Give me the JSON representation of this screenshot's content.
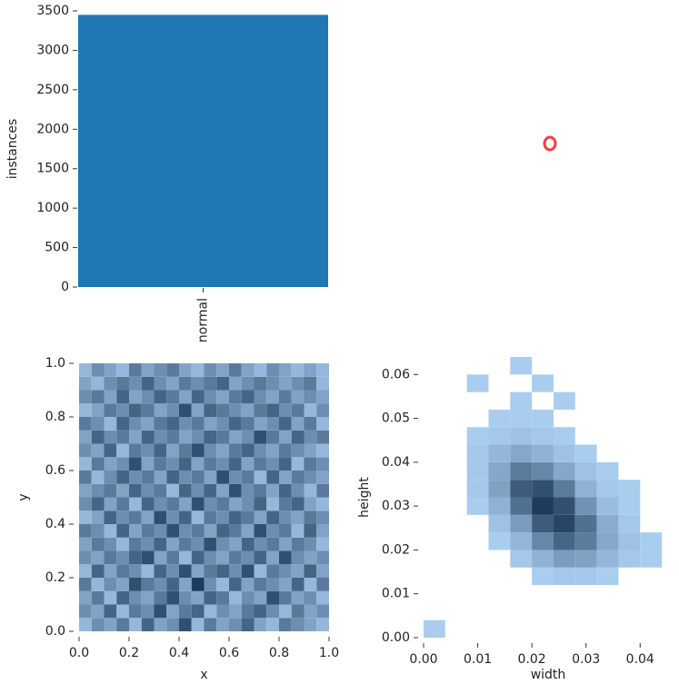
{
  "chart_data": [
    {
      "type": "bar",
      "ylabel": "instances",
      "categories": [
        "normal"
      ],
      "values": [
        3450
      ],
      "color": "#1f77b4",
      "ylim": [
        0,
        3500
      ],
      "yticks": [
        0,
        500,
        1000,
        1500,
        2000,
        2500,
        3000,
        3500
      ]
    },
    {
      "type": "hist2d",
      "xlabel": "x",
      "ylabel": "y",
      "cmap": [
        "#a9cdef",
        "#1d3b5c"
      ],
      "xlim": [
        0,
        1
      ],
      "ylim": [
        0,
        1
      ],
      "xticks": [
        {
          "value": 0,
          "label": "0.0"
        },
        0.2,
        0.4,
        0.6,
        0.8,
        {
          "value": 1,
          "label": "1.0"
        }
      ],
      "yticks": [
        {
          "value": 0,
          "label": "0.0"
        },
        0.2,
        0.4,
        0.6,
        0.8,
        {
          "value": 1,
          "label": "1.0"
        }
      ],
      "x_bins": [
        0,
        0.05,
        0.1,
        0.15,
        0.2,
        0.25,
        0.3,
        0.35,
        0.4,
        0.45,
        0.5,
        0.55,
        0.6,
        0.65,
        0.7,
        0.75,
        0.8,
        0.85,
        0.9,
        0.95,
        1
      ],
      "y_bins": [
        0,
        0.05,
        0.1,
        0.15,
        0.2,
        0.25,
        0.3,
        0.35,
        0.4,
        0.45,
        0.5,
        0.55,
        0.6,
        0.65,
        0.7,
        0.75,
        0.8,
        0.85,
        0.9,
        0.95,
        1
      ],
      "counts": [
        [
          2,
          4,
          3,
          5,
          2,
          6,
          3,
          4,
          7,
          2,
          5,
          3,
          4,
          6,
          3,
          2,
          5,
          4,
          3,
          2
        ],
        [
          4,
          3,
          6,
          2,
          5,
          4,
          7,
          3,
          5,
          6,
          2,
          4,
          3,
          5,
          6,
          4,
          2,
          5,
          3,
          4
        ],
        [
          3,
          5,
          2,
          6,
          4,
          3,
          5,
          7,
          4,
          3,
          6,
          5,
          2,
          4,
          3,
          7,
          5,
          3,
          4,
          2
        ],
        [
          5,
          2,
          4,
          3,
          7,
          5,
          4,
          6,
          3,
          8,
          4,
          2,
          6,
          3,
          5,
          4,
          3,
          6,
          2,
          5
        ],
        [
          2,
          6,
          3,
          5,
          4,
          2,
          6,
          4,
          7,
          3,
          5,
          6,
          4,
          7,
          2,
          5,
          4,
          3,
          6,
          3
        ],
        [
          4,
          3,
          5,
          4,
          6,
          7,
          3,
          5,
          2,
          6,
          4,
          3,
          5,
          4,
          6,
          3,
          7,
          4,
          3,
          4
        ],
        [
          3,
          5,
          4,
          2,
          5,
          4,
          6,
          3,
          5,
          4,
          7,
          4,
          3,
          6,
          4,
          5,
          3,
          5,
          4,
          2
        ],
        [
          5,
          4,
          2,
          6,
          3,
          5,
          4,
          7,
          4,
          5,
          3,
          6,
          5,
          3,
          7,
          4,
          5,
          2,
          6,
          3
        ],
        [
          2,
          3,
          6,
          4,
          5,
          3,
          7,
          4,
          6,
          2,
          5,
          4,
          6,
          5,
          3,
          6,
          4,
          3,
          5,
          4
        ],
        [
          4,
          6,
          3,
          5,
          2,
          6,
          4,
          5,
          3,
          7,
          4,
          5,
          3,
          4,
          6,
          2,
          5,
          6,
          3,
          2
        ],
        [
          3,
          4,
          5,
          3,
          6,
          4,
          5,
          2,
          6,
          4,
          6,
          3,
          7,
          4,
          5,
          3,
          6,
          4,
          2,
          5
        ],
        [
          5,
          2,
          4,
          6,
          4,
          5,
          3,
          6,
          4,
          5,
          3,
          7,
          4,
          5,
          2,
          6,
          3,
          5,
          4,
          3
        ],
        [
          2,
          5,
          3,
          4,
          7,
          3,
          5,
          4,
          6,
          3,
          5,
          4,
          6,
          3,
          5,
          4,
          6,
          2,
          5,
          4
        ],
        [
          4,
          3,
          6,
          2,
          5,
          4,
          6,
          3,
          5,
          7,
          4,
          3,
          5,
          6,
          4,
          3,
          5,
          4,
          3,
          2
        ],
        [
          3,
          6,
          4,
          5,
          3,
          6,
          4,
          5,
          3,
          4,
          6,
          5,
          3,
          4,
          7,
          5,
          3,
          6,
          4,
          5
        ],
        [
          5,
          4,
          2,
          6,
          4,
          3,
          5,
          6,
          4,
          5,
          3,
          4,
          6,
          5,
          3,
          4,
          6,
          3,
          5,
          2
        ],
        [
          2,
          3,
          5,
          4,
          6,
          5,
          3,
          4,
          7,
          3,
          6,
          5,
          4,
          3,
          5,
          6,
          4,
          5,
          2,
          4
        ],
        [
          4,
          5,
          3,
          6,
          3,
          4,
          6,
          5,
          3,
          6,
          4,
          3,
          5,
          6,
          4,
          3,
          5,
          3,
          4,
          3
        ],
        [
          3,
          2,
          4,
          5,
          4,
          6,
          4,
          3,
          5,
          4,
          5,
          6,
          3,
          4,
          5,
          4,
          3,
          4,
          5,
          2
        ],
        [
          2,
          4,
          3,
          2,
          5,
          3,
          4,
          5,
          3,
          2,
          4,
          3,
          5,
          3,
          2,
          4,
          3,
          2,
          3,
          2
        ]
      ]
    },
    {
      "type": "hist2d",
      "xlabel": "width",
      "ylabel": "height",
      "cmap": [
        "#a9cdef",
        "#1d3b5c"
      ],
      "xlim": [
        0,
        0.046
      ],
      "ylim": [
        0,
        0.064
      ],
      "xticks": [
        {
          "value": 0,
          "label": "0.00"
        },
        {
          "value": 0.01,
          "label": "0.01"
        },
        {
          "value": 0.02,
          "label": "0.02"
        },
        {
          "value": 0.03,
          "label": "0.03"
        },
        {
          "value": 0.04,
          "label": "0.04"
        }
      ],
      "yticks": [
        {
          "value": 0,
          "label": "0.00"
        },
        {
          "value": 0.01,
          "label": "0.01"
        },
        {
          "value": 0.02,
          "label": "0.02"
        },
        {
          "value": 0.03,
          "label": "0.03"
        },
        {
          "value": 0.04,
          "label": "0.04"
        },
        {
          "value": 0.05,
          "label": "0.05"
        },
        {
          "value": 0.06,
          "label": "0.06"
        }
      ],
      "x_bins": [
        0,
        0.004,
        0.008,
        0.012,
        0.016,
        0.02,
        0.024,
        0.028,
        0.032,
        0.036,
        0.04,
        0.044
      ],
      "y_bins": [
        0,
        0.004,
        0.008,
        0.012,
        0.016,
        0.02,
        0.024,
        0.028,
        0.032,
        0.036,
        0.04,
        0.044,
        0.048,
        0.052,
        0.056,
        0.06,
        0.064
      ],
      "counts": [
        [
          1,
          0,
          0,
          0,
          0,
          0,
          0,
          0,
          0,
          0,
          0
        ],
        [
          0,
          0,
          0,
          0,
          0,
          0,
          0,
          0,
          0,
          0,
          0
        ],
        [
          0,
          0,
          0,
          0,
          0,
          0,
          0,
          0,
          0,
          0,
          0
        ],
        [
          0,
          0,
          0,
          0,
          0,
          1,
          2,
          2,
          1,
          0,
          0
        ],
        [
          0,
          0,
          0,
          0,
          2,
          6,
          10,
          9,
          5,
          2,
          1
        ],
        [
          0,
          0,
          0,
          1,
          5,
          14,
          20,
          16,
          8,
          3,
          1
        ],
        [
          0,
          0,
          0,
          3,
          10,
          22,
          26,
          18,
          7,
          2,
          0
        ],
        [
          0,
          0,
          1,
          6,
          18,
          28,
          24,
          12,
          4,
          1,
          0
        ],
        [
          0,
          0,
          2,
          9,
          22,
          24,
          16,
          6,
          2,
          1,
          0
        ],
        [
          0,
          0,
          2,
          8,
          16,
          14,
          8,
          3,
          1,
          0,
          0
        ],
        [
          0,
          0,
          2,
          5,
          8,
          6,
          3,
          1,
          0,
          0,
          0
        ],
        [
          0,
          0,
          1,
          2,
          3,
          2,
          1,
          0,
          0,
          0,
          0
        ],
        [
          0,
          0,
          0,
          1,
          1,
          1,
          0,
          0,
          0,
          0,
          0
        ],
        [
          0,
          0,
          0,
          0,
          1,
          0,
          1,
          0,
          0,
          0,
          0
        ],
        [
          0,
          0,
          1,
          0,
          0,
          1,
          0,
          0,
          0,
          0,
          0
        ],
        [
          0,
          0,
          0,
          0,
          1,
          0,
          0,
          0,
          0,
          0,
          0
        ]
      ]
    }
  ]
}
